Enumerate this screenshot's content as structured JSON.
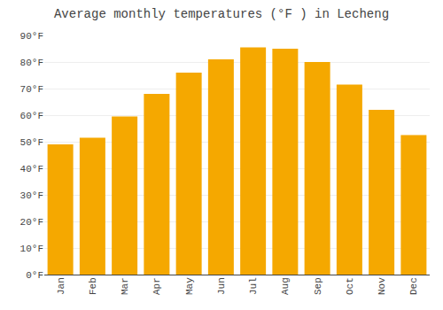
{
  "chart_data": {
    "type": "bar",
    "title": "Average monthly temperatures (°F ) in Lecheng",
    "categories": [
      "Jan",
      "Feb",
      "Mar",
      "Apr",
      "May",
      "Jun",
      "Jul",
      "Aug",
      "Sep",
      "Oct",
      "Nov",
      "Dec"
    ],
    "values": [
      49,
      51.5,
      59.5,
      68,
      76,
      81,
      85.5,
      85,
      80,
      71.5,
      62,
      52.5
    ],
    "color": "#F5A800",
    "ylim": [
      0,
      90
    ],
    "yticks": [
      {
        "value": 0,
        "label": "0°F"
      },
      {
        "value": 10,
        "label": "10°F"
      },
      {
        "value": 20,
        "label": "20°F"
      },
      {
        "value": 30,
        "label": "30°F"
      },
      {
        "value": 40,
        "label": "40°F"
      },
      {
        "value": 50,
        "label": "50°F"
      },
      {
        "value": 60,
        "label": "60°F"
      },
      {
        "value": 70,
        "label": "70°F"
      },
      {
        "value": 80,
        "label": "80°F"
      },
      {
        "value": 90,
        "label": "90°F"
      }
    ],
    "grid": true
  }
}
